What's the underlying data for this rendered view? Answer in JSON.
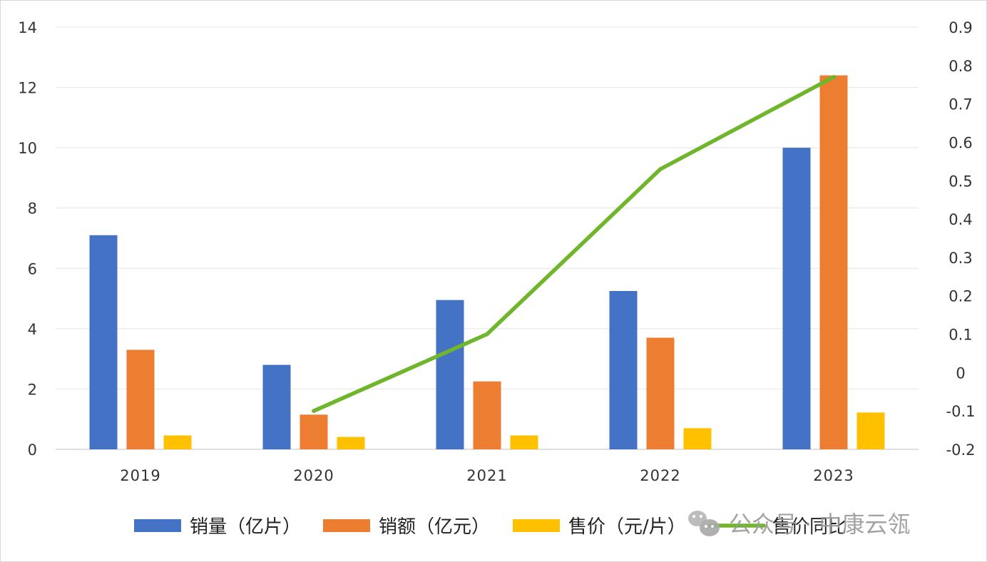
{
  "chart_data": {
    "type": "bar",
    "categories": [
      "2019",
      "2020",
      "2021",
      "2022",
      "2023"
    ],
    "series": [
      {
        "name": "销量（亿片）",
        "type": "bar",
        "axis": "left",
        "color": "#4472C4",
        "values": [
          7.1,
          2.8,
          4.95,
          5.25,
          10.0
        ]
      },
      {
        "name": "销额（亿元）",
        "type": "bar",
        "axis": "left",
        "color": "#ED7D31",
        "values": [
          3.3,
          1.15,
          2.25,
          3.7,
          12.4
        ]
      },
      {
        "name": "售价（元/片）",
        "type": "bar",
        "axis": "left",
        "color": "#FFC000",
        "values": [
          0.46,
          0.41,
          0.46,
          0.7,
          1.22
        ]
      },
      {
        "name": "售价同比",
        "type": "line",
        "axis": "right",
        "color": "#70B62C",
        "values": [
          null,
          -0.1,
          0.1,
          0.53,
          0.77
        ]
      }
    ],
    "y_left": {
      "min": 0,
      "max": 14,
      "ticks": [
        "0",
        "2",
        "4",
        "6",
        "8",
        "10",
        "12",
        "14"
      ]
    },
    "y_right": {
      "min": -0.2,
      "max": 0.9,
      "ticks": [
        "-0.2",
        "-0.1",
        "0",
        "0.1",
        "0.2",
        "0.3",
        "0.4",
        "0.5",
        "0.6",
        "0.7",
        "0.8",
        "0.9"
      ]
    },
    "grid": true,
    "legend_position": "bottom",
    "title": "",
    "xlabel": "",
    "ylabel": ""
  },
  "watermark": {
    "text": "公众号 · 中康云瓴",
    "icon": "wechat-icon"
  }
}
